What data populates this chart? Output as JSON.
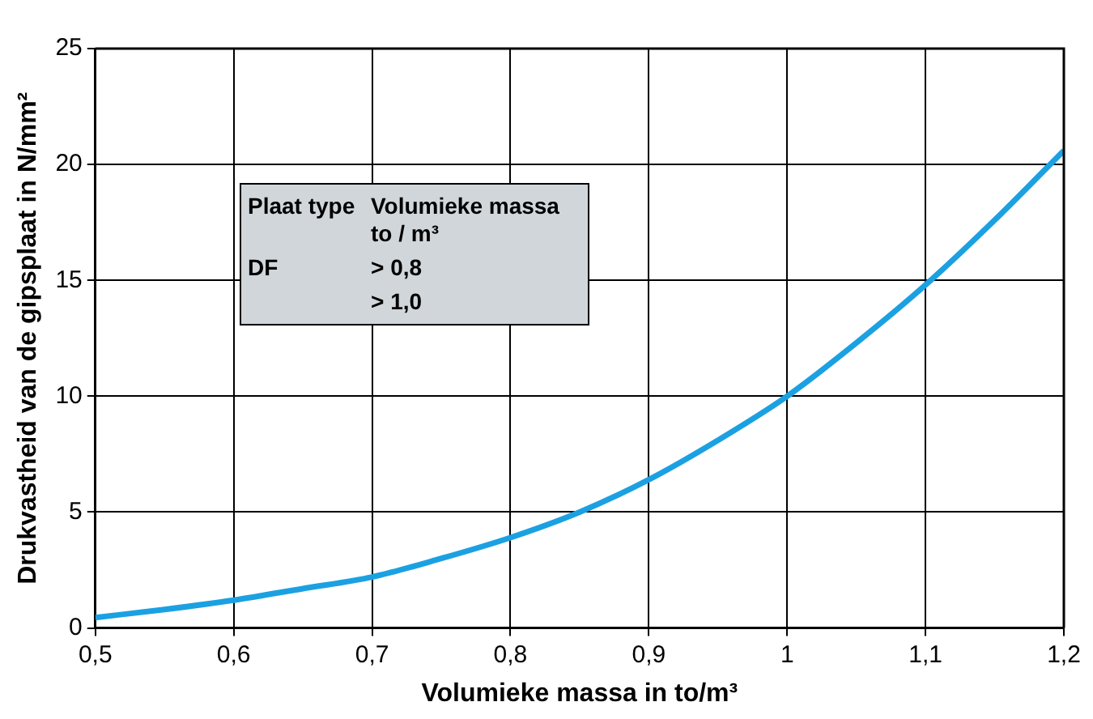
{
  "chart_data": {
    "type": "line",
    "xlabel": "Volumieke massa in to/m³",
    "ylabel": "Drukvastheid van de gipsplaat in N/mm²",
    "x": [
      0.5,
      0.55,
      0.6,
      0.65,
      0.7,
      0.75,
      0.8,
      0.85,
      0.9,
      0.95,
      1.0,
      1.05,
      1.1,
      1.15,
      1.2
    ],
    "series": [
      {
        "color": "#1ba1e2",
        "values": [
          0.45,
          0.8,
          1.2,
          1.7,
          2.2,
          3.0,
          3.9,
          5.0,
          6.4,
          8.1,
          10.0,
          12.3,
          14.8,
          17.6,
          20.6
        ]
      }
    ],
    "xlim": [
      0.5,
      1.2
    ],
    "xticks": [
      {
        "value": 0.5,
        "label": "0,5"
      },
      {
        "value": 0.6,
        "label": "0,6"
      },
      {
        "value": 0.7,
        "label": "0,7"
      },
      {
        "value": 0.8,
        "label": "0,8"
      },
      {
        "value": 0.9,
        "label": "0,9"
      },
      {
        "value": 1,
        "label": "1"
      },
      {
        "value": 1.1,
        "label": "1,1"
      },
      {
        "value": 1.2,
        "label": "1,2"
      }
    ],
    "ylim": [
      0,
      25
    ],
    "yticks": [
      0,
      5,
      10,
      15,
      20,
      25
    ],
    "grid": true,
    "legend": false,
    "marker": "none",
    "line_style": "solid",
    "annotations": [
      "Plaat type",
      "Volumieke massa to / m³",
      "DF",
      "> 0,8",
      "> 1,0"
    ]
  }
}
